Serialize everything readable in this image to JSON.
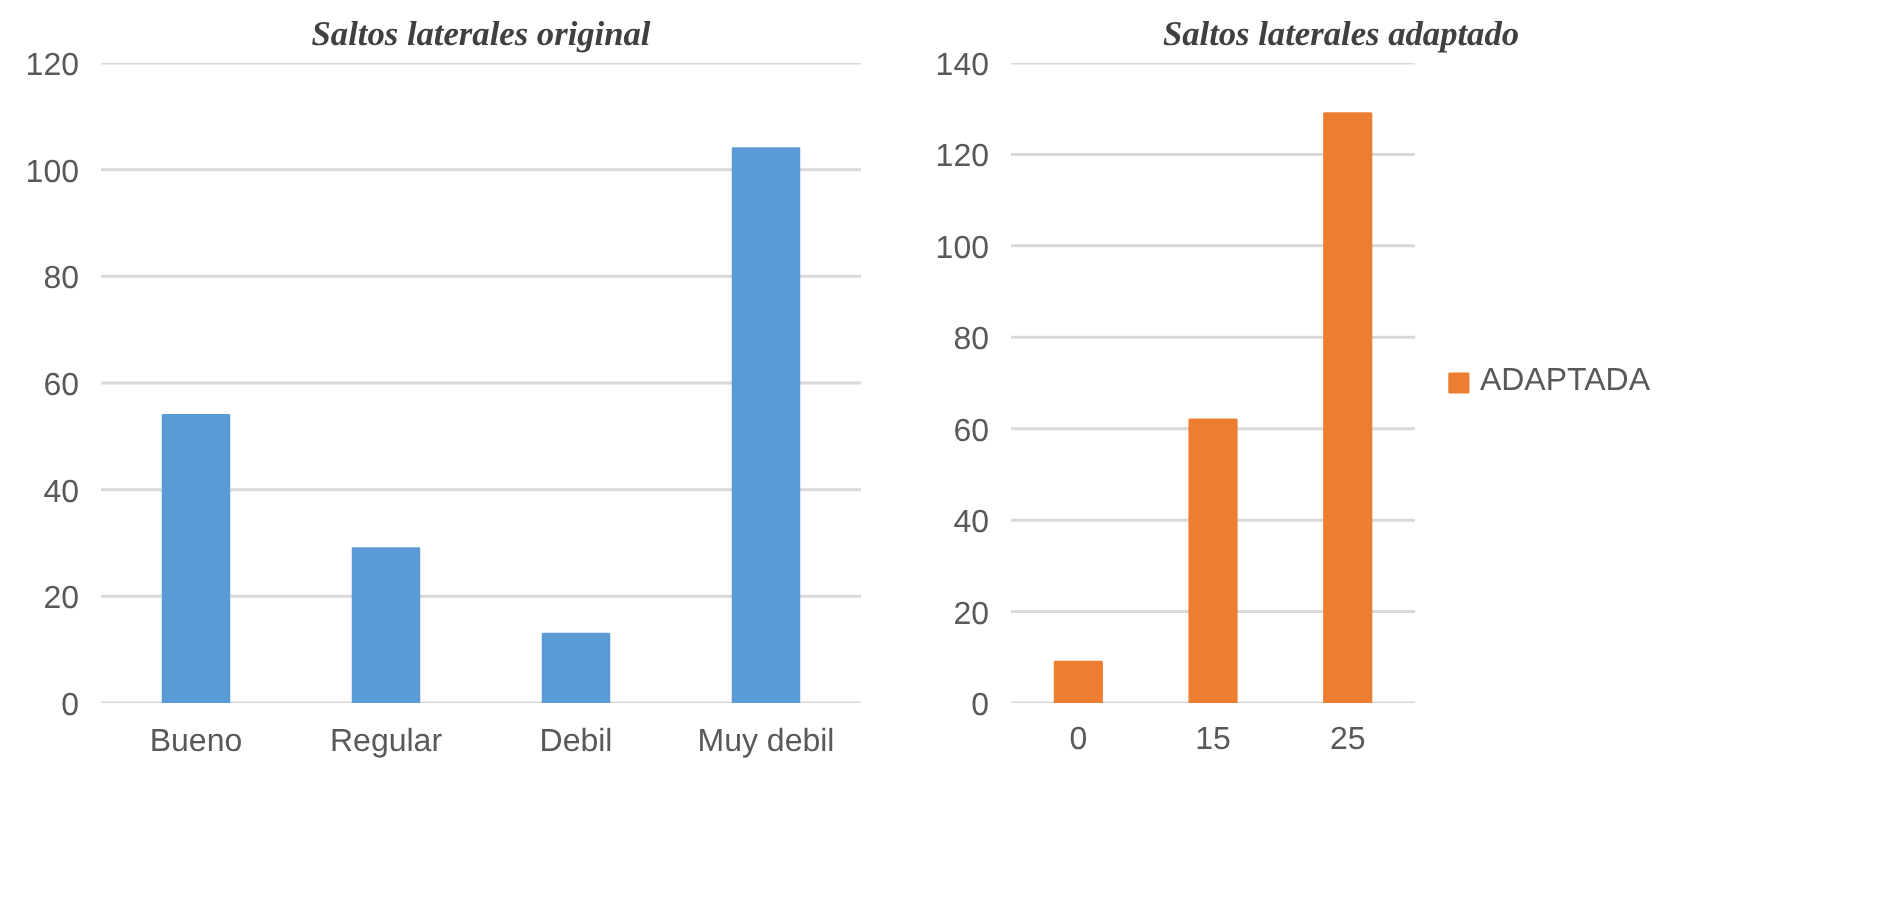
{
  "chart_data": [
    {
      "type": "bar",
      "title": "Saltos laterales original",
      "categories": [
        "Bueno",
        "Regular",
        "Debil",
        "Muy debil"
      ],
      "series": [
        {
          "color": "#5b9bd5",
          "values": [
            54,
            29,
            13,
            104
          ]
        }
      ],
      "ylim": [
        0,
        120
      ],
      "yticks": [
        0,
        20,
        40,
        60,
        80,
        100,
        120
      ],
      "grid": "y",
      "legend": false
    },
    {
      "type": "bar",
      "title": "Saltos laterales adaptado",
      "categories": [
        "0",
        "15",
        "25"
      ],
      "series": [
        {
          "name": "ADAPTADA",
          "color": "#ed7d31",
          "values": [
            9,
            62,
            129
          ]
        }
      ],
      "ylim": [
        0,
        140
      ],
      "yticks": [
        0,
        20,
        40,
        60,
        80,
        100,
        120,
        140
      ],
      "grid": "y",
      "legend": "right"
    }
  ]
}
